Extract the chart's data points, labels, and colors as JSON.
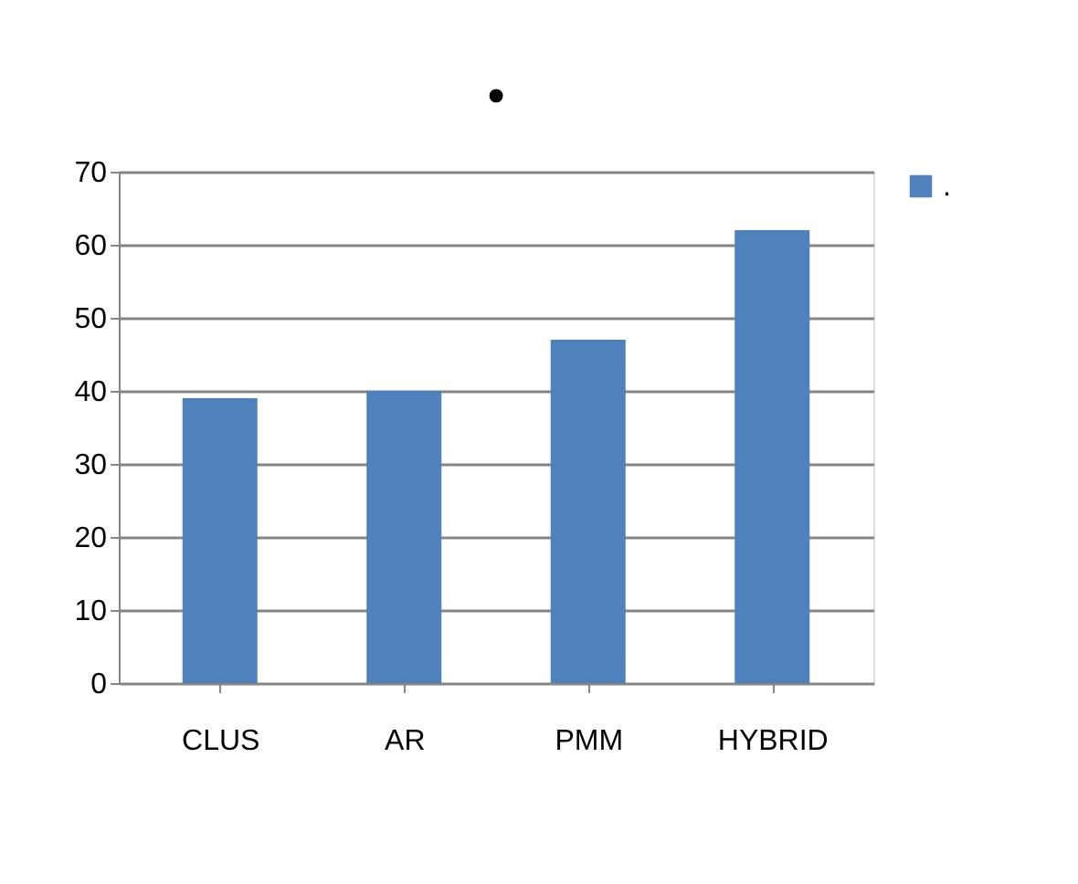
{
  "chart_data": {
    "type": "bar",
    "title": "•",
    "categories": [
      "CLUS",
      "AR",
      "PMM",
      "HYBRID"
    ],
    "series": [
      {
        "name": ".",
        "color": "#4f81bd",
        "values": [
          39,
          40,
          47,
          62
        ]
      }
    ],
    "ylim": [
      0,
      70
    ],
    "yticks": [
      0,
      10,
      20,
      30,
      40,
      50,
      60,
      70
    ],
    "grid": "y",
    "legend": "right"
  }
}
